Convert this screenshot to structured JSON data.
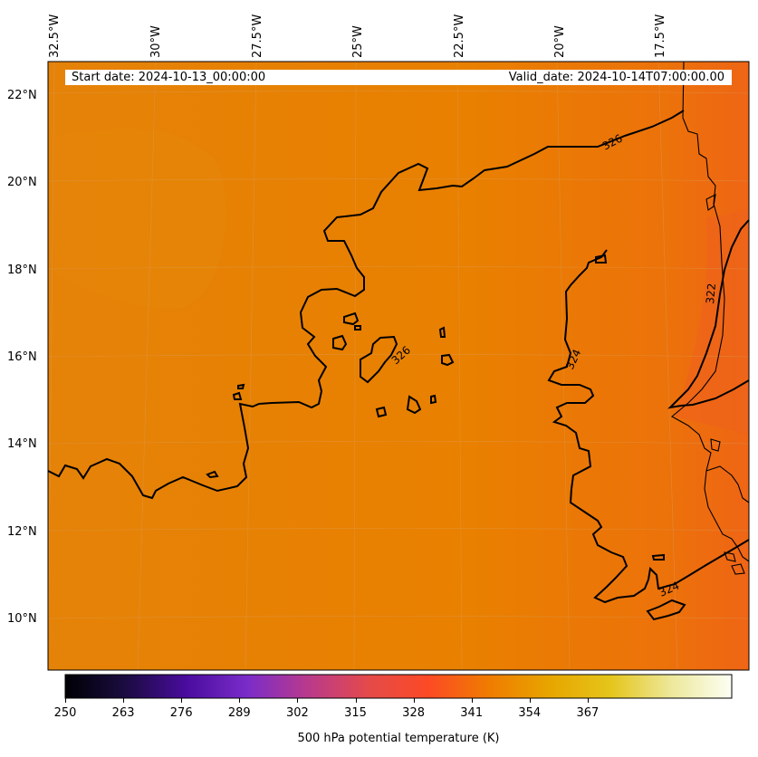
{
  "map": {
    "header": {
      "start_date": "Start date: 2024-10-13_00:00:00",
      "valid_date": "Valid_date: 2024-10-14T07:00:00.00"
    },
    "lon_labels": [
      "32.5°W",
      "30°W",
      "27.5°W",
      "25°W",
      "22.5°W",
      "20°W",
      "17.5°W"
    ],
    "lat_labels": [
      "22°N",
      "20°N",
      "18°N",
      "16°N",
      "14°N",
      "12°N",
      "10°N"
    ],
    "contour_labels": [
      "326",
      "326",
      "324",
      "322",
      "324"
    ],
    "field_colors": {
      "base": "#e98000",
      "warm_east": "#ec6c14",
      "cool_patch": "#e58608"
    }
  },
  "colorbar": {
    "ticks": [
      "250",
      "263",
      "276",
      "289",
      "302",
      "315",
      "328",
      "341",
      "354",
      "367"
    ],
    "label": "500 hPa potential temperature (K)",
    "gradient": [
      "#000004",
      "#1b0c41",
      "#4a0c9e",
      "#7a2cc9",
      "#b93a8c",
      "#e44a4a",
      "#fc4a25",
      "#f07c00",
      "#e7a500",
      "#e5c51a",
      "#ede89a",
      "#fcfff4"
    ]
  }
}
